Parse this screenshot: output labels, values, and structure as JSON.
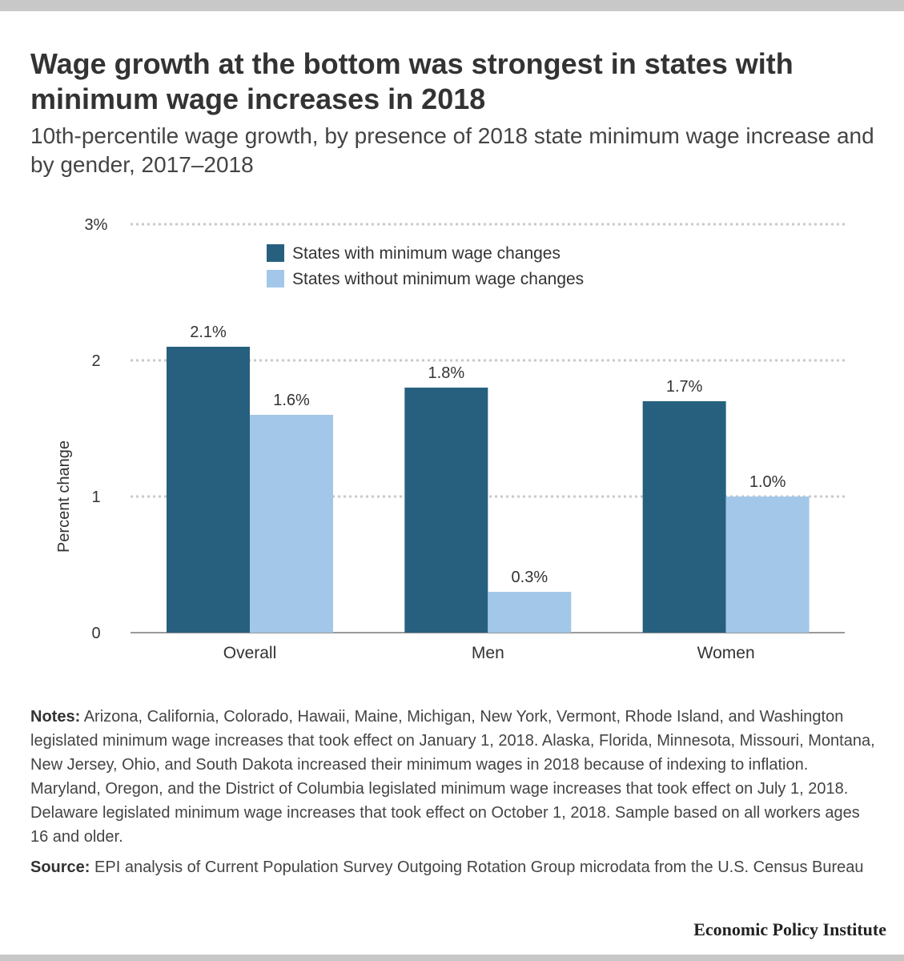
{
  "title": "Wage growth at the bottom was strongest in states with minimum wage increases in 2018",
  "subtitle": "10th-percentile wage growth, by presence of 2018 state minimum wage increase and by gender, 2017–2018",
  "notes": {
    "label": "Notes:",
    "text": "Arizona, California, Colorado, Hawaii, Maine, Michigan, New York, Vermont, Rhode Island, and Washington legislated minimum wage increases that took effect on January 1, 2018. Alaska, Florida, Minnesota, Missouri, Montana, New Jersey, Ohio, and South Dakota increased their minimum wages in 2018 because of indexing to inflation. Maryland, Oregon,  and the District of Columbia legislated minimum wage increases that took effect on July 1, 2018. Delaware legislated minimum wage increases that took effect on October 1, 2018. Sample based on all workers ages 16 and older."
  },
  "source": {
    "label": "Source:",
    "text": "EPI analysis of Current Population Survey Outgoing Rotation Group microdata from the U.S. Census Bureau"
  },
  "brand": "Economic Policy Institute",
  "colors": {
    "series_dark": "#27607f",
    "series_light": "#a3c7e8"
  },
  "chart_data": {
    "type": "bar",
    "categories": [
      "Overall",
      "Men",
      "Women"
    ],
    "series": [
      {
        "name": "States with minimum wage changes",
        "values": [
          2.1,
          1.8,
          1.7
        ],
        "labels": [
          "2.1%",
          "1.8%",
          "1.7%"
        ],
        "color": "#27607f"
      },
      {
        "name": "States without minimum wage changes",
        "values": [
          1.6,
          0.3,
          1.0
        ],
        "labels": [
          "1.6%",
          "0.3%",
          "1.0%"
        ],
        "color": "#a3c7e8"
      }
    ],
    "ylabel": "Percent change",
    "ylim": [
      0,
      3
    ],
    "yticks": [
      {
        "value": 0,
        "label": "0"
      },
      {
        "value": 1,
        "label": "1"
      },
      {
        "value": 2,
        "label": "2"
      },
      {
        "value": 3,
        "label": "3%"
      }
    ],
    "grid": true,
    "legend": "top-center"
  }
}
